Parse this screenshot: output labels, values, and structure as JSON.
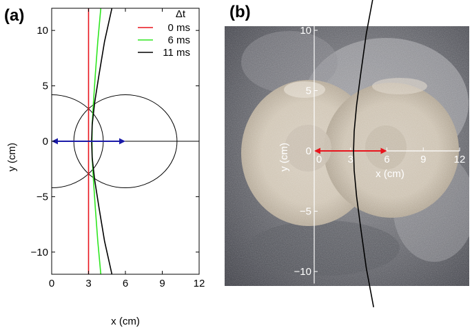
{
  "panels": {
    "a_label": "(a)",
    "b_label": "(b)"
  },
  "chart_data": [
    {
      "type": "line",
      "panel": "(a)",
      "xlabel": "x (cm)",
      "ylabel": "y (cm)",
      "xlim": [
        0,
        12
      ],
      "ylim": [
        -12,
        12
      ],
      "xticks": [
        0,
        3,
        6,
        9,
        12
      ],
      "yticks": [
        -10,
        -5,
        0,
        5,
        10
      ],
      "legend_title": "Δt",
      "legend_position": "top-right",
      "series": [
        {
          "name": "0 ms",
          "color": "#e8141c",
          "x": [
            3.0,
            3.0
          ],
          "y": [
            -12,
            12
          ]
        },
        {
          "name": "6 ms",
          "color": "#2ee61f",
          "x": [
            4.0,
            3.75,
            3.55,
            3.4,
            3.3,
            3.28,
            3.3,
            3.4,
            3.55,
            3.75,
            4.0
          ],
          "y": [
            -12,
            -9,
            -6,
            -3.5,
            -1.5,
            0,
            1.5,
            3.5,
            6,
            9,
            12
          ]
        },
        {
          "name": "11 ms",
          "color": "#000000",
          "x": [
            4.9,
            4.3,
            3.85,
            3.5,
            3.3,
            3.25,
            3.3,
            3.5,
            3.85,
            4.3,
            4.9
          ],
          "y": [
            -12,
            -9,
            -6,
            -3.5,
            -1.5,
            0,
            1.5,
            3.5,
            6,
            9,
            12
          ]
        }
      ],
      "circles": [
        {
          "cx": 0,
          "cy": 0,
          "r": 4.2
        },
        {
          "cx": 6,
          "cy": 0,
          "r": 4.2
        }
      ],
      "arrow": {
        "from": [
          0,
          0
        ],
        "to": [
          6,
          0
        ],
        "color": "#1a1aa8",
        "double_headed": true
      }
    },
    {
      "type": "line",
      "panel": "(b)",
      "xlabel": "x (cm)",
      "ylabel": "y (cm)",
      "xticks": [
        0,
        3,
        6,
        9,
        12
      ],
      "yticks": [
        -10,
        -5,
        0,
        5,
        10
      ],
      "background": "photograph of two overlapping circular sand craters on grey granular bed",
      "series": [
        {
          "name": "",
          "color": "#000000",
          "x": [
            4.9,
            4.3,
            3.85,
            3.5,
            3.3,
            3.25,
            3.3,
            3.5,
            3.85,
            4.3,
            4.9
          ],
          "y": [
            -12,
            -9,
            -6,
            -3.5,
            -1.5,
            0,
            1.5,
            3.5,
            6,
            9,
            12
          ]
        }
      ],
      "arrow": {
        "from": [
          0,
          0
        ],
        "to": [
          6,
          0
        ],
        "color": "#e8141c",
        "double_headed": true
      }
    }
  ]
}
